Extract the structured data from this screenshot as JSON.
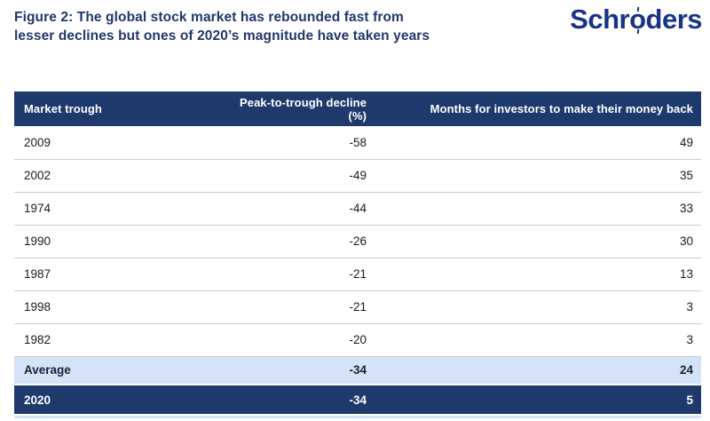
{
  "title": {
    "line1": "Figure 2: The global stock market has rebounded fast from",
    "line2": "lesser declines but ones of 2020’s magnitude have taken years"
  },
  "logo": {
    "pre": "Schr",
    "o": "o",
    "post": "ders"
  },
  "colors": {
    "navy": "#1e3a6d",
    "light_blue": "#d4e3f5",
    "title_blue": "#21386b",
    "logo_blue": "#1a3387"
  },
  "chart_data": {
    "type": "table",
    "title": "Figure 2: The global stock market has rebounded fast from lesser declines but ones of 2020’s magnitude have taken years",
    "columns": [
      "Market trough",
      "Peak-to-trough decline (%)",
      "Months for investors to make their money back"
    ],
    "rows": [
      {
        "trough": "2009",
        "decline": "-58",
        "months": "49"
      },
      {
        "trough": "2002",
        "decline": "-49",
        "months": "35"
      },
      {
        "trough": "1974",
        "decline": "-44",
        "months": "33"
      },
      {
        "trough": "1990",
        "decline": "-26",
        "months": "30"
      },
      {
        "trough": "1987",
        "decline": "-21",
        "months": "13"
      },
      {
        "trough": "1998",
        "decline": "-21",
        "months": "3"
      },
      {
        "trough": "1982",
        "decline": "-20",
        "months": "3"
      }
    ],
    "average": {
      "trough": "Average",
      "decline": "-34",
      "months": "24"
    },
    "highlight_2020": {
      "trough": "2020",
      "decline": "-34",
      "months": "5"
    }
  },
  "table": {
    "header": {
      "col1": "Market trough",
      "col2": "Peak-to-trough decline (%)",
      "col3": "Months for investors to make their money back"
    }
  }
}
